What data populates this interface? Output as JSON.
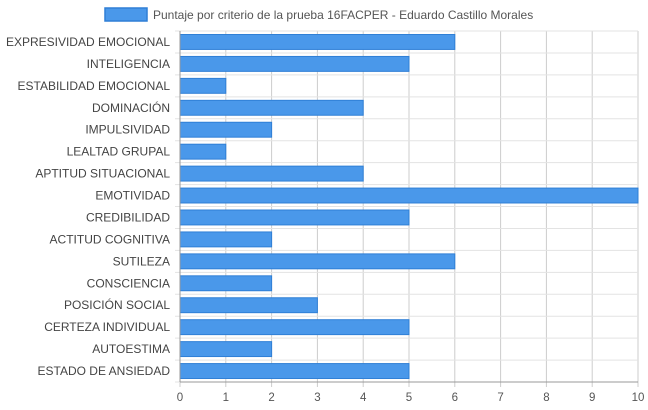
{
  "chart_data": {
    "type": "bar",
    "orientation": "horizontal",
    "title": "",
    "xlabel": "",
    "ylabel": "",
    "legend_position": "top",
    "grid": true,
    "xlim": [
      0,
      10
    ],
    "x_ticks": [
      "0",
      "1",
      "2",
      "3",
      "4",
      "5",
      "6",
      "7",
      "8",
      "9",
      "10"
    ],
    "categories": [
      "EXPRESIVIDAD EMOCIONAL",
      "INTELIGENCIA",
      "ESTABILIDAD EMOCIONAL",
      "DOMINACIÓN",
      "IMPULSIVIDAD",
      "LEALTAD GRUPAL",
      "APTITUD SITUACIONAL",
      "EMOTIVIDAD",
      "CREDIBILIDAD",
      "ACTITUD COGNITIVA",
      "SUTILEZA",
      "CONSCIENCIA",
      "POSICIÓN SOCIAL",
      "CERTEZA INDIVIDUAL",
      "AUTOESTIMA",
      "ESTADO DE ANSIEDAD"
    ],
    "series": [
      {
        "name": "Puntaje por criterio de la prueba 16FACPER - Eduardo Castillo Morales",
        "color": "#4a98ea",
        "border_color": "#2f7fd6",
        "values": [
          6,
          5,
          1,
          4,
          2,
          1,
          4,
          10,
          5,
          2,
          6,
          2,
          3,
          5,
          2,
          5
        ]
      }
    ]
  }
}
